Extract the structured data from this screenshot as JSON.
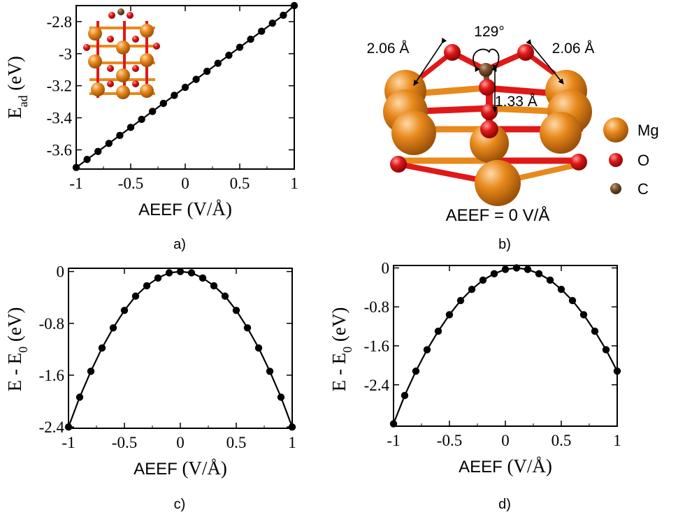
{
  "chart_data": [
    {
      "id": "a",
      "type": "line",
      "caption": "a)",
      "xlabel": "AEEF",
      "xunit": "(V/Å)",
      "ylabel_main": "E",
      "ylabel_sub": "ad",
      "yunit": "(eV)",
      "xlim": [
        -1,
        1
      ],
      "ylim": [
        -3.72,
        -2.7
      ],
      "xticks": [
        -1,
        -0.5,
        0,
        0.5,
        1
      ],
      "xtick_labels": [
        "-1",
        "-0.5",
        "0",
        "0.5",
        "1"
      ],
      "yticks": [
        -3.6,
        -3.4,
        -3.2,
        -3.0,
        -2.8
      ],
      "ytick_labels": [
        "-3.6",
        "-3.4",
        "-3.2",
        "-3",
        "-2.8"
      ],
      "series": [
        {
          "x": [
            -1,
            -0.9,
            -0.8,
            -0.7,
            -0.6,
            -0.5,
            -0.4,
            -0.3,
            -0.2,
            -0.1,
            0,
            0.1,
            0.2,
            0.3,
            0.4,
            0.5,
            0.6,
            0.7,
            0.8,
            0.9,
            1
          ],
          "y": [
            -3.71,
            -3.66,
            -3.61,
            -3.56,
            -3.51,
            -3.46,
            -3.41,
            -3.36,
            -3.31,
            -3.26,
            -3.21,
            -3.16,
            -3.11,
            -3.06,
            -3.01,
            -2.96,
            -2.91,
            -2.86,
            -2.81,
            -2.76,
            -2.7
          ]
        }
      ],
      "grid": false,
      "inset": "MgO slab with adsorbed CO2"
    },
    {
      "id": "c",
      "type": "line",
      "caption": "c)",
      "xlabel": "AEEF",
      "xunit": "(V/Å)",
      "ylabel_main": "E - E",
      "ylabel_sub": "0",
      "yunit": "(eV)",
      "xlim": [
        -1,
        1
      ],
      "ylim": [
        -2.42,
        0.05
      ],
      "xticks": [
        -1,
        -0.5,
        0,
        0.5,
        1
      ],
      "xtick_labels": [
        "-1",
        "-0.5",
        "0",
        "0.5",
        "1"
      ],
      "yticks": [
        -2.4,
        -1.6,
        -0.8,
        0
      ],
      "ytick_labels": [
        "-2.4",
        "-1.6",
        "-0.8",
        "0"
      ],
      "series": [
        {
          "x": [
            -1,
            -0.9,
            -0.8,
            -0.7,
            -0.6,
            -0.5,
            -0.4,
            -0.3,
            -0.2,
            -0.1,
            0,
            0.1,
            0.2,
            0.3,
            0.4,
            0.5,
            0.6,
            0.7,
            0.8,
            0.9,
            1
          ],
          "y": [
            -2.4,
            -1.94,
            -1.54,
            -1.18,
            -0.87,
            -0.6,
            -0.38,
            -0.22,
            -0.1,
            -0.02,
            0.0,
            -0.02,
            -0.1,
            -0.22,
            -0.38,
            -0.6,
            -0.87,
            -1.18,
            -1.54,
            -1.94,
            -2.4
          ]
        }
      ],
      "grid": false
    },
    {
      "id": "d",
      "type": "line",
      "caption": "d)",
      "xlabel": "AEEF",
      "xunit": "(V/Å)",
      "ylabel_main": "E - E",
      "ylabel_sub": "0",
      "yunit": "(eV)",
      "xlim": [
        -1,
        1
      ],
      "ylim": [
        -3.25,
        0.05
      ],
      "xticks": [
        -1,
        -0.5,
        0,
        0.5,
        1
      ],
      "xtick_labels": [
        "-1",
        "-0.5",
        "0",
        "0.5",
        "1"
      ],
      "yticks": [
        -2.4,
        -1.6,
        -0.8,
        0
      ],
      "ytick_labels": [
        "-2.4",
        "-1.6",
        "-0.8",
        "0"
      ],
      "series": [
        {
          "x": [
            -1,
            -0.9,
            -0.8,
            -0.7,
            -0.6,
            -0.5,
            -0.4,
            -0.3,
            -0.2,
            -0.1,
            0,
            0.1,
            0.2,
            0.3,
            0.4,
            0.5,
            0.6,
            0.7,
            0.8,
            0.9,
            1
          ],
          "y": [
            -3.2,
            -2.62,
            -2.12,
            -1.68,
            -1.3,
            -0.96,
            -0.67,
            -0.44,
            -0.25,
            -0.12,
            -0.03,
            0.0,
            -0.03,
            -0.12,
            -0.25,
            -0.44,
            -0.67,
            -0.96,
            -1.3,
            -1.68,
            -2.12
          ]
        }
      ],
      "grid": false
    }
  ],
  "panel_b": {
    "caption": "b)",
    "angle_label": "129°",
    "bond_left_label": "2.06 Å",
    "bond_right_label": "2.06 Å",
    "co_bond_label": "1.33 Å",
    "field_label": "AEEF = 0 V/Å",
    "legend": [
      {
        "label": "Mg",
        "color": "#e8891c"
      },
      {
        "label": "O",
        "color": "#e01818"
      },
      {
        "label": "C",
        "color": "#7a5230"
      }
    ]
  },
  "colors": {
    "line": "#000000",
    "marker": "#000000",
    "mg": "#e8891c",
    "o": "#e01818",
    "c": "#7a5230"
  }
}
